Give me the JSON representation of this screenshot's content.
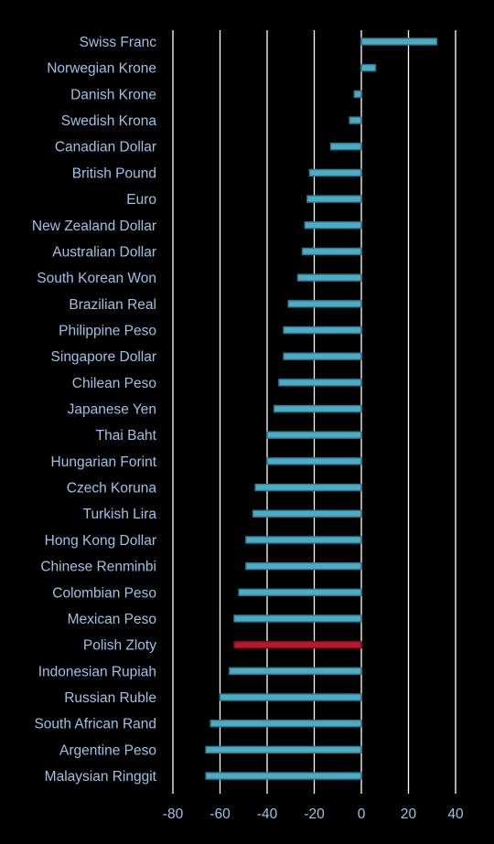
{
  "chart_data": {
    "type": "bar",
    "orientation": "horizontal",
    "categories": [
      "Swiss Franc",
      "Norwegian Krone",
      "Danish Krone",
      "Swedish Krona",
      "Canadian Dollar",
      "British Pound",
      "Euro",
      "New Zealand Dollar",
      "Australian Dollar",
      "South Korean Won",
      "Brazilian Real",
      "Philippine Peso",
      "Singapore Dollar",
      "Chilean Peso",
      "Japanese Yen",
      "Thai Baht",
      "Hungarian Forint",
      "Czech Koruna",
      "Turkish Lira",
      "Hong Kong Dollar",
      "Chinese Renminbi",
      "Colombian Peso",
      "Mexican Peso",
      "Polish Zloty",
      "Indonesian Rupiah",
      "Russian Ruble",
      "South African Rand",
      "Argentine Peso",
      "Malaysian Ringgit"
    ],
    "values": [
      32,
      6,
      -3,
      -5,
      -13,
      -22,
      -23,
      -24,
      -25,
      -27,
      -31,
      -33,
      -33,
      -35,
      -37,
      -40,
      -40,
      -45,
      -46,
      -49,
      -49,
      -52,
      -54,
      -54,
      -56,
      -60,
      -64,
      -66,
      -66
    ],
    "highlight_category": "Polish Zloty",
    "xlim": [
      -80,
      40
    ],
    "xticks": [
      -80,
      -60,
      -40,
      -20,
      0,
      20,
      40
    ],
    "tick_labels": [
      "-80",
      "-60",
      "-40",
      "-20",
      "0",
      "20",
      "40"
    ],
    "gridlines": true,
    "colors": {
      "background": "#000000",
      "bar": "#4bacc6",
      "bar_border": "#2e7b91",
      "highlight": "#c0142a",
      "highlight_border": "#7e0d1c",
      "gridline": "#ffffff",
      "label": "#9cc2e6"
    }
  }
}
